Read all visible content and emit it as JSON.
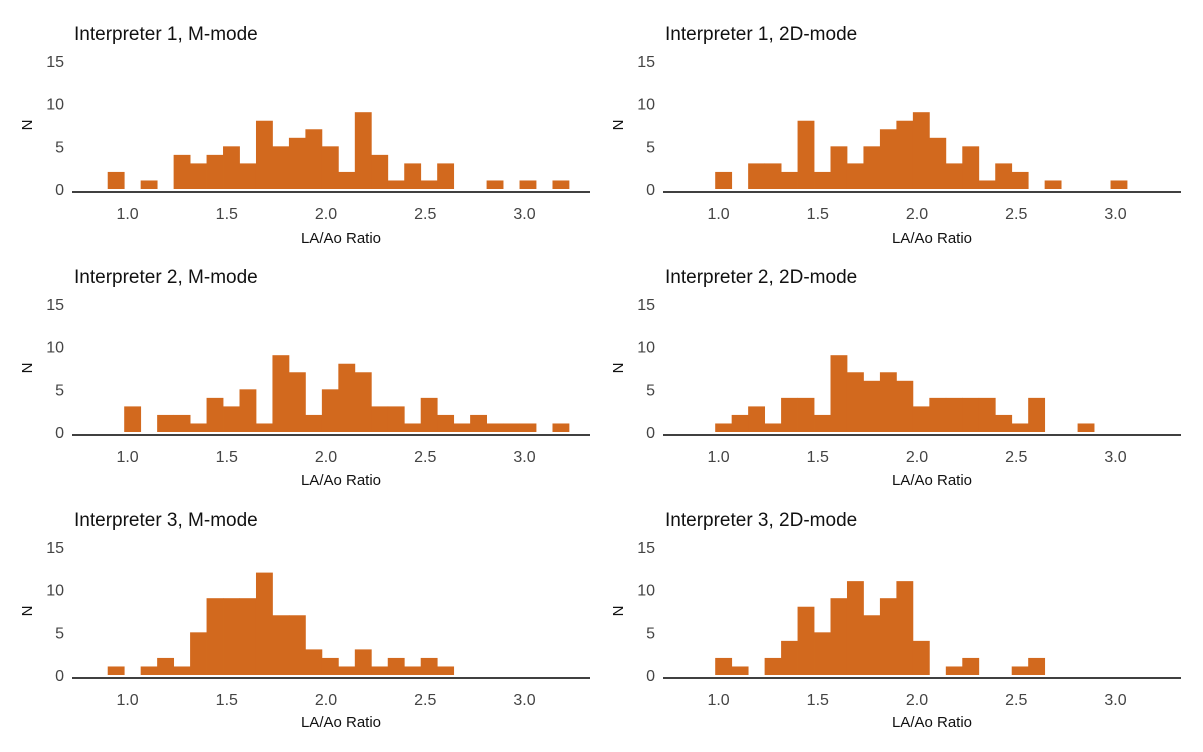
{
  "chart_data": [
    {
      "type": "bar",
      "title": "Interpreter 1, M-mode",
      "xlabel": "LA/Ao Ratio",
      "ylabel": "N",
      "bin_width": 0.083,
      "xlim": [
        0.72,
        3.33
      ],
      "ylim": [
        0,
        15
      ],
      "xticks": [
        1.0,
        1.5,
        2.0,
        2.5,
        3.0
      ],
      "xtick_labels": [
        "1.0",
        "1.5",
        "2.0",
        "2.5",
        "3.0"
      ],
      "yticks": [
        0,
        5,
        10,
        15
      ],
      "ytick_labels": [
        "0",
        "5",
        "10",
        "15"
      ],
      "bins": [
        {
          "x0": 0.9,
          "x1": 0.983,
          "count": 2
        },
        {
          "x0": 1.066,
          "x1": 1.149,
          "count": 1
        },
        {
          "x0": 1.232,
          "x1": 1.315,
          "count": 4
        },
        {
          "x0": 1.315,
          "x1": 1.398,
          "count": 3
        },
        {
          "x0": 1.398,
          "x1": 1.481,
          "count": 4
        },
        {
          "x0": 1.481,
          "x1": 1.564,
          "count": 5
        },
        {
          "x0": 1.564,
          "x1": 1.647,
          "count": 3
        },
        {
          "x0": 1.647,
          "x1": 1.73,
          "count": 8
        },
        {
          "x0": 1.73,
          "x1": 1.813,
          "count": 5
        },
        {
          "x0": 1.813,
          "x1": 1.896,
          "count": 6
        },
        {
          "x0": 1.896,
          "x1": 1.979,
          "count": 7
        },
        {
          "x0": 1.979,
          "x1": 2.062,
          "count": 5
        },
        {
          "x0": 2.062,
          "x1": 2.145,
          "count": 2
        },
        {
          "x0": 2.145,
          "x1": 2.228,
          "count": 9
        },
        {
          "x0": 2.228,
          "x1": 2.311,
          "count": 4
        },
        {
          "x0": 2.311,
          "x1": 2.394,
          "count": 1
        },
        {
          "x0": 2.394,
          "x1": 2.477,
          "count": 3
        },
        {
          "x0": 2.477,
          "x1": 2.56,
          "count": 1
        },
        {
          "x0": 2.56,
          "x1": 2.643,
          "count": 3
        },
        {
          "x0": 2.809,
          "x1": 2.892,
          "count": 1
        },
        {
          "x0": 2.975,
          "x1": 3.058,
          "count": 1
        },
        {
          "x0": 3.141,
          "x1": 3.224,
          "count": 1
        }
      ]
    },
    {
      "type": "bar",
      "title": "Interpreter 1, 2D-mode",
      "xlabel": "LA/Ao Ratio",
      "ylabel": "N",
      "bin_width": 0.083,
      "xlim": [
        0.72,
        3.33
      ],
      "ylim": [
        0,
        15
      ],
      "xticks": [
        1.0,
        1.5,
        2.0,
        2.5,
        3.0
      ],
      "xtick_labels": [
        "1.0",
        "1.5",
        "2.0",
        "2.5",
        "3.0"
      ],
      "yticks": [
        0,
        5,
        10,
        15
      ],
      "ytick_labels": [
        "0",
        "5",
        "10",
        "15"
      ],
      "bins": [
        {
          "x0": 0.983,
          "x1": 1.066,
          "count": 2
        },
        {
          "x0": 1.149,
          "x1": 1.232,
          "count": 3
        },
        {
          "x0": 1.232,
          "x1": 1.315,
          "count": 3
        },
        {
          "x0": 1.315,
          "x1": 1.398,
          "count": 2
        },
        {
          "x0": 1.398,
          "x1": 1.481,
          "count": 8
        },
        {
          "x0": 1.481,
          "x1": 1.564,
          "count": 2
        },
        {
          "x0": 1.564,
          "x1": 1.647,
          "count": 5
        },
        {
          "x0": 1.647,
          "x1": 1.73,
          "count": 3
        },
        {
          "x0": 1.73,
          "x1": 1.813,
          "count": 5
        },
        {
          "x0": 1.813,
          "x1": 1.896,
          "count": 7
        },
        {
          "x0": 1.896,
          "x1": 1.979,
          "count": 8
        },
        {
          "x0": 1.979,
          "x1": 2.062,
          "count": 9
        },
        {
          "x0": 2.062,
          "x1": 2.145,
          "count": 6
        },
        {
          "x0": 2.145,
          "x1": 2.228,
          "count": 3
        },
        {
          "x0": 2.228,
          "x1": 2.311,
          "count": 5
        },
        {
          "x0": 2.311,
          "x1": 2.394,
          "count": 1
        },
        {
          "x0": 2.394,
          "x1": 2.477,
          "count": 3
        },
        {
          "x0": 2.477,
          "x1": 2.56,
          "count": 2
        },
        {
          "x0": 2.643,
          "x1": 2.726,
          "count": 1
        },
        {
          "x0": 2.975,
          "x1": 3.058,
          "count": 1
        }
      ]
    },
    {
      "type": "bar",
      "title": "Interpreter 2, M-mode",
      "xlabel": "LA/Ao Ratio",
      "ylabel": "N",
      "bin_width": 0.083,
      "xlim": [
        0.72,
        3.33
      ],
      "ylim": [
        0,
        15
      ],
      "xticks": [
        1.0,
        1.5,
        2.0,
        2.5,
        3.0
      ],
      "xtick_labels": [
        "1.0",
        "1.5",
        "2.0",
        "2.5",
        "3.0"
      ],
      "yticks": [
        0,
        5,
        10,
        15
      ],
      "ytick_labels": [
        "0",
        "5",
        "10",
        "15"
      ],
      "bins": [
        {
          "x0": 0.983,
          "x1": 1.066,
          "count": 3
        },
        {
          "x0": 1.149,
          "x1": 1.232,
          "count": 2
        },
        {
          "x0": 1.232,
          "x1": 1.315,
          "count": 2
        },
        {
          "x0": 1.315,
          "x1": 1.398,
          "count": 1
        },
        {
          "x0": 1.398,
          "x1": 1.481,
          "count": 4
        },
        {
          "x0": 1.481,
          "x1": 1.564,
          "count": 3
        },
        {
          "x0": 1.564,
          "x1": 1.647,
          "count": 5
        },
        {
          "x0": 1.647,
          "x1": 1.73,
          "count": 1
        },
        {
          "x0": 1.73,
          "x1": 1.813,
          "count": 9
        },
        {
          "x0": 1.813,
          "x1": 1.896,
          "count": 7
        },
        {
          "x0": 1.896,
          "x1": 1.979,
          "count": 2
        },
        {
          "x0": 1.979,
          "x1": 2.062,
          "count": 5
        },
        {
          "x0": 2.062,
          "x1": 2.145,
          "count": 8
        },
        {
          "x0": 2.145,
          "x1": 2.228,
          "count": 7
        },
        {
          "x0": 2.228,
          "x1": 2.311,
          "count": 3
        },
        {
          "x0": 2.311,
          "x1": 2.394,
          "count": 3
        },
        {
          "x0": 2.394,
          "x1": 2.477,
          "count": 1
        },
        {
          "x0": 2.477,
          "x1": 2.56,
          "count": 4
        },
        {
          "x0": 2.56,
          "x1": 2.643,
          "count": 2
        },
        {
          "x0": 2.643,
          "x1": 2.726,
          "count": 1
        },
        {
          "x0": 2.726,
          "x1": 2.809,
          "count": 2
        },
        {
          "x0": 2.809,
          "x1": 2.892,
          "count": 1
        },
        {
          "x0": 2.892,
          "x1": 2.975,
          "count": 1
        },
        {
          "x0": 2.975,
          "x1": 3.058,
          "count": 1
        },
        {
          "x0": 3.141,
          "x1": 3.224,
          "count": 1
        }
      ]
    },
    {
      "type": "bar",
      "title": "Interpreter 2, 2D-mode",
      "xlabel": "LA/Ao Ratio",
      "ylabel": "N",
      "bin_width": 0.083,
      "xlim": [
        0.72,
        3.33
      ],
      "ylim": [
        0,
        15
      ],
      "xticks": [
        1.0,
        1.5,
        2.0,
        2.5,
        3.0
      ],
      "xtick_labels": [
        "1.0",
        "1.5",
        "2.0",
        "2.5",
        "3.0"
      ],
      "yticks": [
        0,
        5,
        10,
        15
      ],
      "ytick_labels": [
        "0",
        "5",
        "10",
        "15"
      ],
      "bins": [
        {
          "x0": 0.983,
          "x1": 1.066,
          "count": 1
        },
        {
          "x0": 1.066,
          "x1": 1.149,
          "count": 2
        },
        {
          "x0": 1.149,
          "x1": 1.232,
          "count": 3
        },
        {
          "x0": 1.232,
          "x1": 1.315,
          "count": 1
        },
        {
          "x0": 1.315,
          "x1": 1.398,
          "count": 4
        },
        {
          "x0": 1.398,
          "x1": 1.481,
          "count": 4
        },
        {
          "x0": 1.481,
          "x1": 1.564,
          "count": 2
        },
        {
          "x0": 1.564,
          "x1": 1.647,
          "count": 9
        },
        {
          "x0": 1.647,
          "x1": 1.73,
          "count": 7
        },
        {
          "x0": 1.73,
          "x1": 1.813,
          "count": 6
        },
        {
          "x0": 1.813,
          "x1": 1.896,
          "count": 7
        },
        {
          "x0": 1.896,
          "x1": 1.979,
          "count": 6
        },
        {
          "x0": 1.979,
          "x1": 2.062,
          "count": 3
        },
        {
          "x0": 2.062,
          "x1": 2.145,
          "count": 4
        },
        {
          "x0": 2.145,
          "x1": 2.228,
          "count": 4
        },
        {
          "x0": 2.228,
          "x1": 2.311,
          "count": 4
        },
        {
          "x0": 2.311,
          "x1": 2.394,
          "count": 4
        },
        {
          "x0": 2.394,
          "x1": 2.477,
          "count": 2
        },
        {
          "x0": 2.477,
          "x1": 2.56,
          "count": 1
        },
        {
          "x0": 2.56,
          "x1": 2.643,
          "count": 4
        },
        {
          "x0": 2.809,
          "x1": 2.892,
          "count": 1
        }
      ]
    },
    {
      "type": "bar",
      "title": "Interpreter 3, M-mode",
      "xlabel": "LA/Ao Ratio",
      "ylabel": "N",
      "bin_width": 0.083,
      "xlim": [
        0.72,
        3.33
      ],
      "ylim": [
        0,
        15
      ],
      "xticks": [
        1.0,
        1.5,
        2.0,
        2.5,
        3.0
      ],
      "xtick_labels": [
        "1.0",
        "1.5",
        "2.0",
        "2.5",
        "3.0"
      ],
      "yticks": [
        0,
        5,
        10,
        15
      ],
      "ytick_labels": [
        "0",
        "5",
        "10",
        "15"
      ],
      "bins": [
        {
          "x0": 0.9,
          "x1": 0.983,
          "count": 1
        },
        {
          "x0": 1.066,
          "x1": 1.149,
          "count": 1
        },
        {
          "x0": 1.149,
          "x1": 1.232,
          "count": 2
        },
        {
          "x0": 1.232,
          "x1": 1.315,
          "count": 1
        },
        {
          "x0": 1.315,
          "x1": 1.398,
          "count": 5
        },
        {
          "x0": 1.398,
          "x1": 1.481,
          "count": 9
        },
        {
          "x0": 1.481,
          "x1": 1.564,
          "count": 9
        },
        {
          "x0": 1.564,
          "x1": 1.647,
          "count": 9
        },
        {
          "x0": 1.647,
          "x1": 1.73,
          "count": 12
        },
        {
          "x0": 1.73,
          "x1": 1.813,
          "count": 7
        },
        {
          "x0": 1.813,
          "x1": 1.896,
          "count": 7
        },
        {
          "x0": 1.896,
          "x1": 1.979,
          "count": 3
        },
        {
          "x0": 1.979,
          "x1": 2.062,
          "count": 2
        },
        {
          "x0": 2.062,
          "x1": 2.145,
          "count": 1
        },
        {
          "x0": 2.145,
          "x1": 2.228,
          "count": 3
        },
        {
          "x0": 2.228,
          "x1": 2.311,
          "count": 1
        },
        {
          "x0": 2.311,
          "x1": 2.394,
          "count": 2
        },
        {
          "x0": 2.394,
          "x1": 2.477,
          "count": 1
        },
        {
          "x0": 2.477,
          "x1": 2.56,
          "count": 2
        },
        {
          "x0": 2.56,
          "x1": 2.643,
          "count": 1
        }
      ]
    },
    {
      "type": "bar",
      "title": "Interpreter 3, 2D-mode",
      "xlabel": "LA/Ao Ratio",
      "ylabel": "N",
      "bin_width": 0.083,
      "xlim": [
        0.72,
        3.33
      ],
      "ylim": [
        0,
        15
      ],
      "xticks": [
        1.0,
        1.5,
        2.0,
        2.5,
        3.0
      ],
      "xtick_labels": [
        "1.0",
        "1.5",
        "2.0",
        "2.5",
        "3.0"
      ],
      "yticks": [
        0,
        5,
        10,
        15
      ],
      "ytick_labels": [
        "0",
        "5",
        "10",
        "15"
      ],
      "bins": [
        {
          "x0": 0.983,
          "x1": 1.066,
          "count": 2
        },
        {
          "x0": 1.066,
          "x1": 1.149,
          "count": 1
        },
        {
          "x0": 1.232,
          "x1": 1.315,
          "count": 2
        },
        {
          "x0": 1.315,
          "x1": 1.398,
          "count": 4
        },
        {
          "x0": 1.398,
          "x1": 1.481,
          "count": 8
        },
        {
          "x0": 1.481,
          "x1": 1.564,
          "count": 5
        },
        {
          "x0": 1.564,
          "x1": 1.647,
          "count": 9
        },
        {
          "x0": 1.647,
          "x1": 1.73,
          "count": 11
        },
        {
          "x0": 1.73,
          "x1": 1.813,
          "count": 7
        },
        {
          "x0": 1.813,
          "x1": 1.896,
          "count": 9
        },
        {
          "x0": 1.896,
          "x1": 1.979,
          "count": 11
        },
        {
          "x0": 1.979,
          "x1": 2.062,
          "count": 4
        },
        {
          "x0": 2.145,
          "x1": 2.228,
          "count": 1
        },
        {
          "x0": 2.228,
          "x1": 2.311,
          "count": 2
        },
        {
          "x0": 2.477,
          "x1": 2.56,
          "count": 1
        },
        {
          "x0": 2.56,
          "x1": 2.643,
          "count": 2
        }
      ]
    }
  ],
  "colors": {
    "bar_fill": "#D2691E",
    "axis_line": "#000000",
    "tick_text": "#444444",
    "title_text": "#111111"
  }
}
